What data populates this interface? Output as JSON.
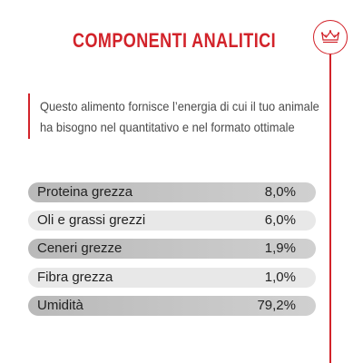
{
  "header": {
    "title": "COMPONENTI ANALITICI",
    "logo_icon": "royal-canin-crown-icon"
  },
  "intro": {
    "line1": "Questo alimento fornisce l’energia di cui il tuo animale",
    "line2": "ha bisogno nel quantitativo e nel formato ottimale"
  },
  "components": [
    {
      "label": "Proteina grezza",
      "value": "8,0%"
    },
    {
      "label": "Oli e grassi grezzi",
      "value": "6,0%"
    },
    {
      "label": "Ceneri grezze",
      "value": "1,9%"
    },
    {
      "label": "Fibra grezza",
      "value": "1,0%"
    },
    {
      "label": "Umidità",
      "value": "79,2%"
    }
  ],
  "colors": {
    "accent": "#d2232a",
    "text": "#222222",
    "row_dark": "#c4c4c4",
    "row_light": "#e8e8e8"
  }
}
